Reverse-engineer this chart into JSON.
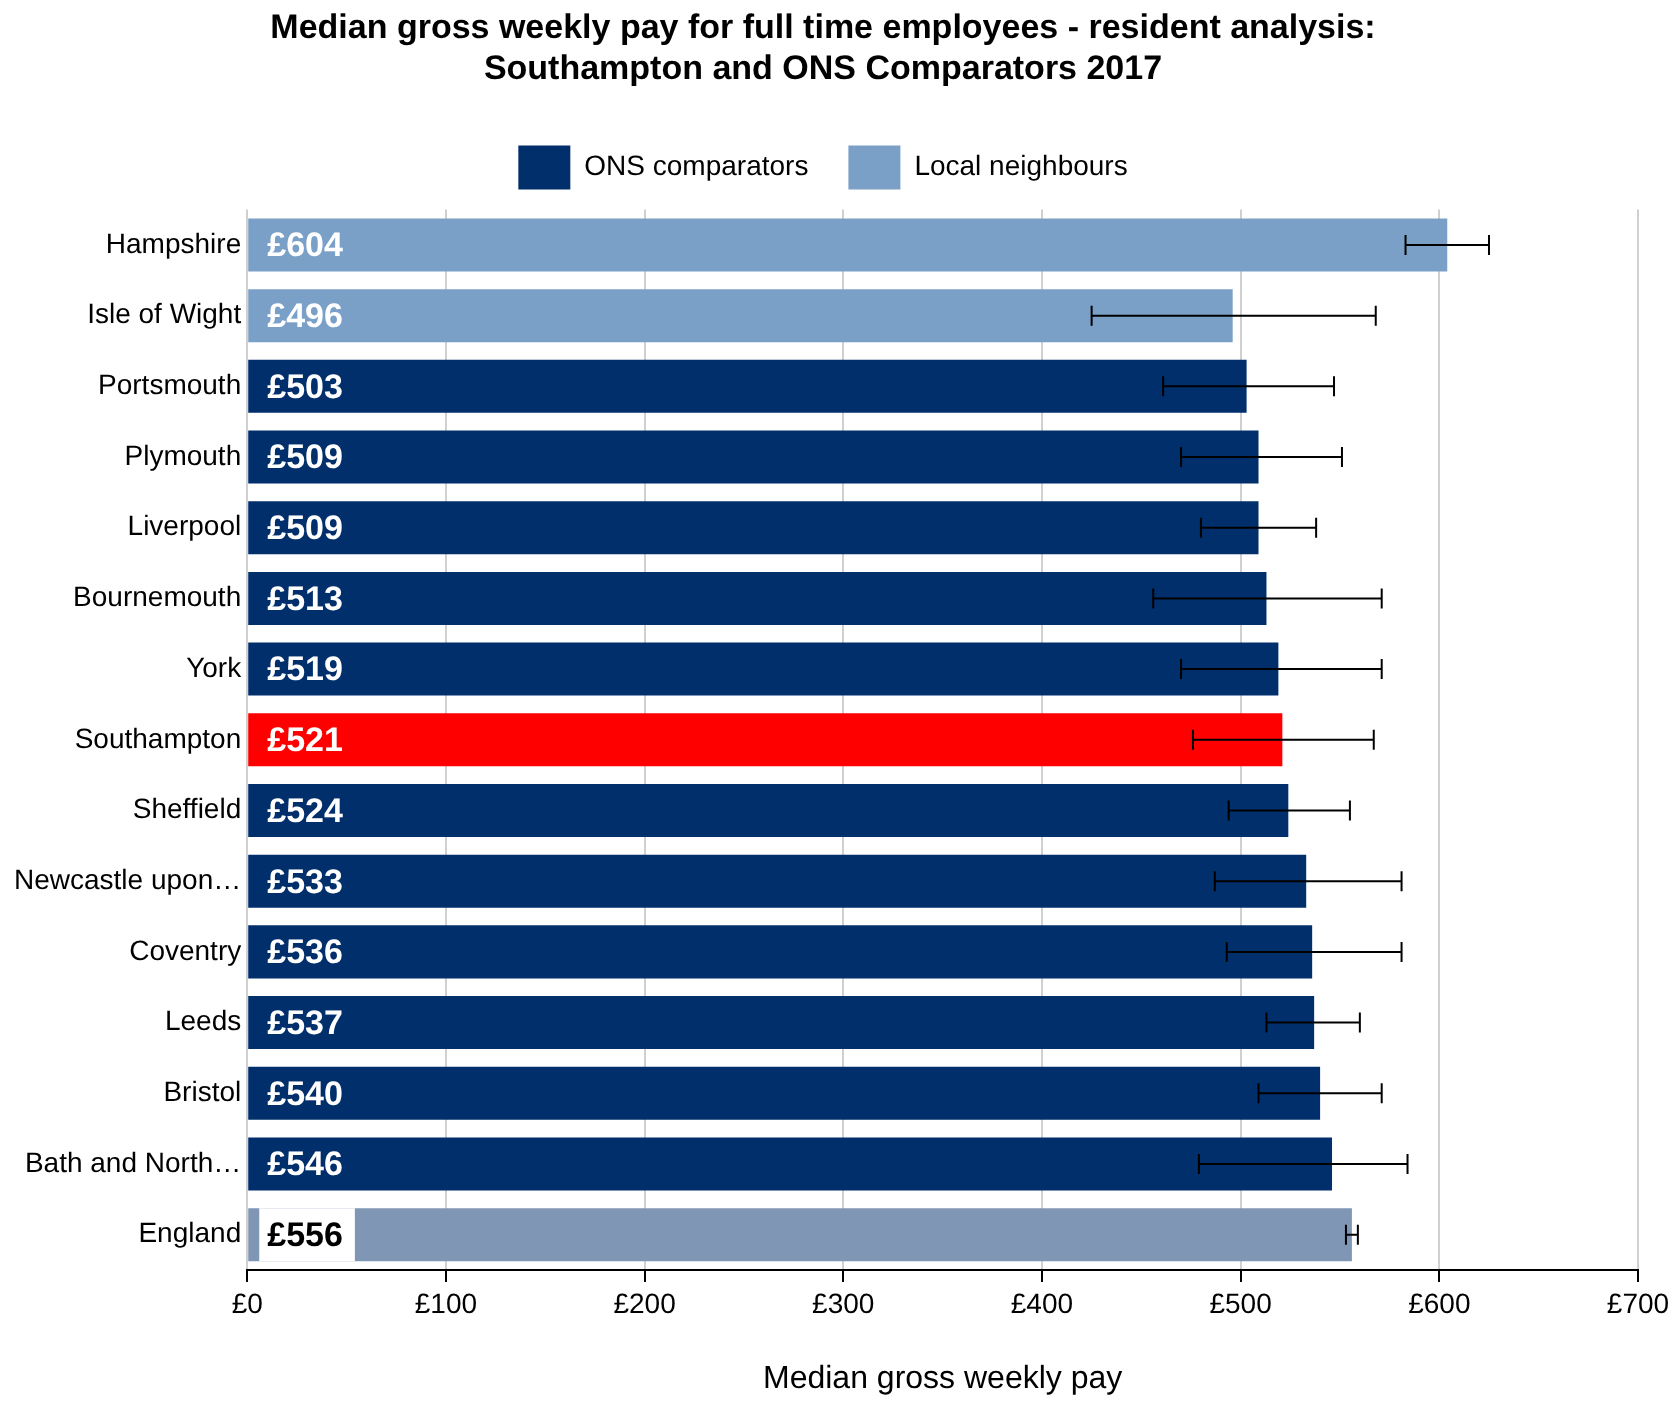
{
  "chart_data": {
    "type": "bar",
    "orientation": "horizontal",
    "title": "Median gross weekly pay for full time employees - resident analysis: Southampton and ONS Comparators 2017",
    "xlabel": "Median gross weekly pay",
    "categories": [
      "Hampshire",
      "Isle of Wight",
      "Portsmouth",
      "Plymouth",
      "Liverpool",
      "Bournemouth",
      "York",
      "Southampton",
      "Sheffield",
      "Newcastle upon…",
      "Coventry",
      "Leeds",
      "Bristol",
      "Bath and North…",
      "England"
    ],
    "series": [
      {
        "name": "ONS comparators",
        "color": "#002f6c",
        "colors": [
          "#002f6c",
          "#002f6c",
          "#002f6c",
          "#002f6c",
          "#002f6c",
          "#002f6c",
          "#002f6c",
          "#ff0000",
          "#002f6c",
          "#002f6c",
          "#002f6c",
          "#002f6c",
          "#002f6c",
          "#002f6c",
          "#8096b5"
        ],
        "values": [
          null,
          null,
          503,
          509,
          509,
          513,
          519,
          521,
          524,
          533,
          536,
          537,
          540,
          546,
          556
        ],
        "value_labels": [
          null,
          null,
          "£503",
          "£509",
          "£509",
          "£513",
          "£519",
          "£521",
          "£524",
          "£533",
          "£536",
          "£537",
          "£540",
          "£546",
          "£556"
        ],
        "errors": [
          null,
          null,
          [
            461,
            547
          ],
          [
            470,
            551
          ],
          [
            480,
            538
          ],
          [
            456,
            571
          ],
          [
            470,
            571
          ],
          [
            476,
            567
          ],
          [
            494,
            555
          ],
          [
            487,
            581
          ],
          [
            493,
            581
          ],
          [
            513,
            560
          ],
          [
            509,
            571
          ],
          [
            479,
            584
          ],
          [
            553,
            559
          ]
        ]
      },
      {
        "name": "Local neighbours",
        "color": "#7aa0c8",
        "values": [
          604,
          496,
          null,
          null,
          null,
          null,
          null,
          null,
          null,
          null,
          null,
          null,
          null,
          null,
          null
        ],
        "value_labels": [
          "£604",
          "£496",
          null,
          null,
          null,
          null,
          null,
          null,
          null,
          null,
          null,
          null,
          null,
          null,
          null
        ],
        "errors": [
          [
            583,
            625
          ],
          [
            425,
            568
          ],
          null,
          null,
          null,
          null,
          null,
          null,
          null,
          null,
          null,
          null,
          null,
          null,
          null
        ]
      }
    ],
    "xlim": [
      0,
      700
    ],
    "xticks": [
      {
        "value": 0,
        "label": "£0"
      },
      {
        "value": 100,
        "label": "£100"
      },
      {
        "value": 200,
        "label": "£200"
      },
      {
        "value": 300,
        "label": "£300"
      },
      {
        "value": 400,
        "label": "£400"
      },
      {
        "value": 500,
        "label": "£500"
      },
      {
        "value": 600,
        "label": "£600"
      },
      {
        "value": 700,
        "label": "£700"
      }
    ],
    "grid": "x",
    "legend": "top"
  }
}
